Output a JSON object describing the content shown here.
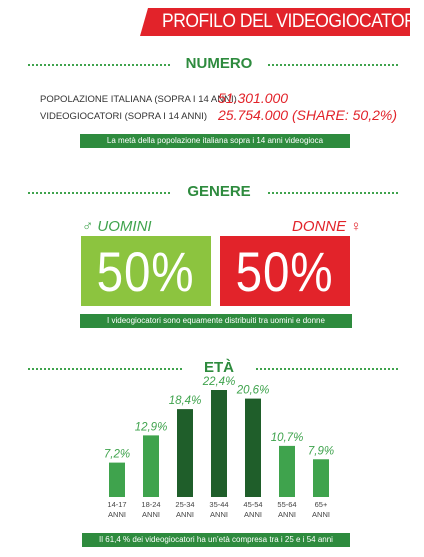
{
  "header": {
    "title": "PROFILO DEL VIDEOGIOCATORE"
  },
  "numero": {
    "title": "NUMERO",
    "rows": [
      {
        "label": "POPOLAZIONE ITALIANA (SOPRA I 14 ANNI)",
        "value": "51.301.000"
      },
      {
        "label": "VIDEOGIOCATORI (SOPRA I 14 ANNI)",
        "value": "25.754.000 (SHARE: 50,2%)"
      }
    ],
    "note": "La metà della popolazione italiana sopra i 14 anni videogioca"
  },
  "genere": {
    "title": "GENERE",
    "men": {
      "symbol": "♂",
      "label": "UOMINI",
      "value": "50%"
    },
    "women": {
      "symbol": "♀",
      "label": "DONNE",
      "value": "50%"
    },
    "note": "I videogiocatori sono equamente distribuiti tra uomini e donne"
  },
  "eta": {
    "title": "ETÀ",
    "note": "Il 61,4 % dei videogiocatori ha un’età compresa tra i 25 e i 54 anni"
  },
  "colors": {
    "red": "#e2232a",
    "green": "#3fa34d",
    "dark_green": "#1f5e2a",
    "light_green": "#8cc43f"
  },
  "chart_data": {
    "type": "bar",
    "categories": [
      "14-17 ANNI",
      "18-24 ANNI",
      "25-34 ANNI",
      "35-44 ANNI",
      "45-54 ANNI",
      "55-64 ANNI",
      "65+ ANNI"
    ],
    "category_lines": [
      [
        "14-17",
        "ANNI"
      ],
      [
        "18-24",
        "ANNI"
      ],
      [
        "25-34",
        "ANNI"
      ],
      [
        "35-44",
        "ANNI"
      ],
      [
        "45-54",
        "ANNI"
      ],
      [
        "55-64",
        "ANNI"
      ],
      [
        "65+",
        "ANNI"
      ]
    ],
    "values": [
      7.2,
      12.9,
      18.4,
      22.4,
      20.6,
      10.7,
      7.9
    ],
    "data_labels": [
      "7,2%",
      "12,9%",
      "18,4%",
      "22,4%",
      "20,6%",
      "10,7%",
      "7,9%"
    ],
    "highlighted": [
      false,
      false,
      true,
      true,
      true,
      false,
      false
    ],
    "ylim": [
      0,
      22.4
    ]
  }
}
